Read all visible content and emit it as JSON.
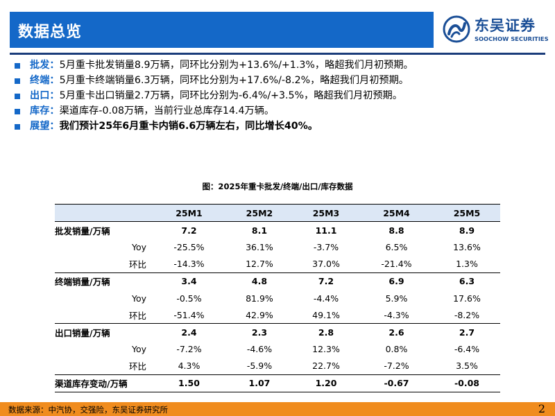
{
  "header": {
    "title": "数据总览"
  },
  "logo": {
    "cn": "东吴证券",
    "en": "SOOCHOW SECURITIES"
  },
  "bullets": [
    {
      "label": "批发",
      "colon": "：",
      "text": "5月重卡批发销量8.9万辆，同环比分别为+13.6%/+1.3%，略超我们月初预期。"
    },
    {
      "label": "终端",
      "colon": "：",
      "text": "5月重卡终端销量6.3万辆，同环比分别为+17.6%/-8.2%，略超我们月初预期。"
    },
    {
      "label": "出口",
      "colon": "：",
      "text": "5月重卡出口销量2.7万辆，同环比分别为-6.4%/+3.5%，略超我们月初预期。"
    },
    {
      "label": "库存",
      "colon": "：",
      "text": "渠道库存-0.08万辆，当前行业总库存14.4万辆。"
    },
    {
      "label": "展望",
      "colon": "：",
      "text": "我们预计25年6月重卡内销6.6万辆左右，同比增长40%。"
    }
  ],
  "figure": {
    "caption": "图：2025年重卡批发/终端/出口/库存数据"
  },
  "table": {
    "columns": [
      "25M1",
      "25M2",
      "25M3",
      "25M4",
      "25M5"
    ],
    "wholesale": {
      "label": "批发销量/万辆",
      "values": [
        "7.2",
        "8.1",
        "11.1",
        "8.8",
        "8.9"
      ],
      "yoy_label": "Yoy",
      "yoy": [
        "-25.5%",
        "36.1%",
        "-3.7%",
        "6.5%",
        "13.6%"
      ],
      "mom_label": "环比",
      "mom": [
        "-14.3%",
        "12.7%",
        "37.0%",
        "-21.4%",
        "1.3%"
      ]
    },
    "terminal": {
      "label": "终端销量/万辆",
      "values": [
        "3.4",
        "4.8",
        "7.2",
        "6.9",
        "6.3"
      ],
      "yoy_label": "Yoy",
      "yoy": [
        "-0.5%",
        "81.9%",
        "-4.4%",
        "5.9%",
        "17.6%"
      ],
      "mom_label": "环比",
      "mom": [
        "-51.4%",
        "42.9%",
        "49.1%",
        "-4.3%",
        "-8.2%"
      ]
    },
    "export": {
      "label": "出口销量/万辆",
      "values": [
        "2.4",
        "2.3",
        "2.8",
        "2.6",
        "2.7"
      ],
      "yoy_label": "Yoy",
      "yoy": [
        "-7.2%",
        "-4.6%",
        "12.3%",
        "0.8%",
        "-6.4%"
      ],
      "mom_label": "环比",
      "mom": [
        "4.3%",
        "-5.9%",
        "22.7%",
        "-7.2%",
        "3.5%"
      ]
    },
    "inventory": {
      "label": "渠道库存变动/万辆",
      "values": [
        "1.50",
        "1.07",
        "1.20",
        "-0.67",
        "-0.08"
      ]
    }
  },
  "footer": {
    "source": "数据来源：中汽协，交强险，东吴证券研究所",
    "page": "2"
  },
  "colors": {
    "header_blue": "#1468c8",
    "footer_orange": "#f08c1e",
    "table_head_bg": "#dce7f5",
    "logo_navy": "#1a4e96"
  }
}
